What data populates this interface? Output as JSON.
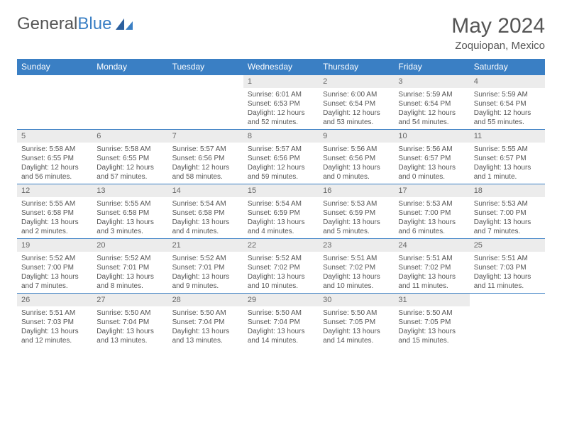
{
  "logo": {
    "word1": "General",
    "word2": "Blue"
  },
  "title": "May 2024",
  "location": "Zoquiopan, Mexico",
  "colors": {
    "header_bg": "#3a7fc4",
    "header_text": "#ffffff",
    "daynum_bg": "#ececec",
    "border": "#3a7fc4",
    "text": "#555555",
    "background": "#ffffff"
  },
  "dayNames": [
    "Sunday",
    "Monday",
    "Tuesday",
    "Wednesday",
    "Thursday",
    "Friday",
    "Saturday"
  ],
  "weeks": [
    [
      {
        "n": "",
        "sr": "",
        "ss": "",
        "dl": ""
      },
      {
        "n": "",
        "sr": "",
        "ss": "",
        "dl": ""
      },
      {
        "n": "",
        "sr": "",
        "ss": "",
        "dl": ""
      },
      {
        "n": "1",
        "sr": "Sunrise: 6:01 AM",
        "ss": "Sunset: 6:53 PM",
        "dl": "Daylight: 12 hours and 52 minutes."
      },
      {
        "n": "2",
        "sr": "Sunrise: 6:00 AM",
        "ss": "Sunset: 6:54 PM",
        "dl": "Daylight: 12 hours and 53 minutes."
      },
      {
        "n": "3",
        "sr": "Sunrise: 5:59 AM",
        "ss": "Sunset: 6:54 PM",
        "dl": "Daylight: 12 hours and 54 minutes."
      },
      {
        "n": "4",
        "sr": "Sunrise: 5:59 AM",
        "ss": "Sunset: 6:54 PM",
        "dl": "Daylight: 12 hours and 55 minutes."
      }
    ],
    [
      {
        "n": "5",
        "sr": "Sunrise: 5:58 AM",
        "ss": "Sunset: 6:55 PM",
        "dl": "Daylight: 12 hours and 56 minutes."
      },
      {
        "n": "6",
        "sr": "Sunrise: 5:58 AM",
        "ss": "Sunset: 6:55 PM",
        "dl": "Daylight: 12 hours and 57 minutes."
      },
      {
        "n": "7",
        "sr": "Sunrise: 5:57 AM",
        "ss": "Sunset: 6:56 PM",
        "dl": "Daylight: 12 hours and 58 minutes."
      },
      {
        "n": "8",
        "sr": "Sunrise: 5:57 AM",
        "ss": "Sunset: 6:56 PM",
        "dl": "Daylight: 12 hours and 59 minutes."
      },
      {
        "n": "9",
        "sr": "Sunrise: 5:56 AM",
        "ss": "Sunset: 6:56 PM",
        "dl": "Daylight: 13 hours and 0 minutes."
      },
      {
        "n": "10",
        "sr": "Sunrise: 5:56 AM",
        "ss": "Sunset: 6:57 PM",
        "dl": "Daylight: 13 hours and 0 minutes."
      },
      {
        "n": "11",
        "sr": "Sunrise: 5:55 AM",
        "ss": "Sunset: 6:57 PM",
        "dl": "Daylight: 13 hours and 1 minute."
      }
    ],
    [
      {
        "n": "12",
        "sr": "Sunrise: 5:55 AM",
        "ss": "Sunset: 6:58 PM",
        "dl": "Daylight: 13 hours and 2 minutes."
      },
      {
        "n": "13",
        "sr": "Sunrise: 5:55 AM",
        "ss": "Sunset: 6:58 PM",
        "dl": "Daylight: 13 hours and 3 minutes."
      },
      {
        "n": "14",
        "sr": "Sunrise: 5:54 AM",
        "ss": "Sunset: 6:58 PM",
        "dl": "Daylight: 13 hours and 4 minutes."
      },
      {
        "n": "15",
        "sr": "Sunrise: 5:54 AM",
        "ss": "Sunset: 6:59 PM",
        "dl": "Daylight: 13 hours and 4 minutes."
      },
      {
        "n": "16",
        "sr": "Sunrise: 5:53 AM",
        "ss": "Sunset: 6:59 PM",
        "dl": "Daylight: 13 hours and 5 minutes."
      },
      {
        "n": "17",
        "sr": "Sunrise: 5:53 AM",
        "ss": "Sunset: 7:00 PM",
        "dl": "Daylight: 13 hours and 6 minutes."
      },
      {
        "n": "18",
        "sr": "Sunrise: 5:53 AM",
        "ss": "Sunset: 7:00 PM",
        "dl": "Daylight: 13 hours and 7 minutes."
      }
    ],
    [
      {
        "n": "19",
        "sr": "Sunrise: 5:52 AM",
        "ss": "Sunset: 7:00 PM",
        "dl": "Daylight: 13 hours and 7 minutes."
      },
      {
        "n": "20",
        "sr": "Sunrise: 5:52 AM",
        "ss": "Sunset: 7:01 PM",
        "dl": "Daylight: 13 hours and 8 minutes."
      },
      {
        "n": "21",
        "sr": "Sunrise: 5:52 AM",
        "ss": "Sunset: 7:01 PM",
        "dl": "Daylight: 13 hours and 9 minutes."
      },
      {
        "n": "22",
        "sr": "Sunrise: 5:52 AM",
        "ss": "Sunset: 7:02 PM",
        "dl": "Daylight: 13 hours and 10 minutes."
      },
      {
        "n": "23",
        "sr": "Sunrise: 5:51 AM",
        "ss": "Sunset: 7:02 PM",
        "dl": "Daylight: 13 hours and 10 minutes."
      },
      {
        "n": "24",
        "sr": "Sunrise: 5:51 AM",
        "ss": "Sunset: 7:02 PM",
        "dl": "Daylight: 13 hours and 11 minutes."
      },
      {
        "n": "25",
        "sr": "Sunrise: 5:51 AM",
        "ss": "Sunset: 7:03 PM",
        "dl": "Daylight: 13 hours and 11 minutes."
      }
    ],
    [
      {
        "n": "26",
        "sr": "Sunrise: 5:51 AM",
        "ss": "Sunset: 7:03 PM",
        "dl": "Daylight: 13 hours and 12 minutes."
      },
      {
        "n": "27",
        "sr": "Sunrise: 5:50 AM",
        "ss": "Sunset: 7:04 PM",
        "dl": "Daylight: 13 hours and 13 minutes."
      },
      {
        "n": "28",
        "sr": "Sunrise: 5:50 AM",
        "ss": "Sunset: 7:04 PM",
        "dl": "Daylight: 13 hours and 13 minutes."
      },
      {
        "n": "29",
        "sr": "Sunrise: 5:50 AM",
        "ss": "Sunset: 7:04 PM",
        "dl": "Daylight: 13 hours and 14 minutes."
      },
      {
        "n": "30",
        "sr": "Sunrise: 5:50 AM",
        "ss": "Sunset: 7:05 PM",
        "dl": "Daylight: 13 hours and 14 minutes."
      },
      {
        "n": "31",
        "sr": "Sunrise: 5:50 AM",
        "ss": "Sunset: 7:05 PM",
        "dl": "Daylight: 13 hours and 15 minutes."
      },
      {
        "n": "",
        "sr": "",
        "ss": "",
        "dl": ""
      }
    ]
  ]
}
